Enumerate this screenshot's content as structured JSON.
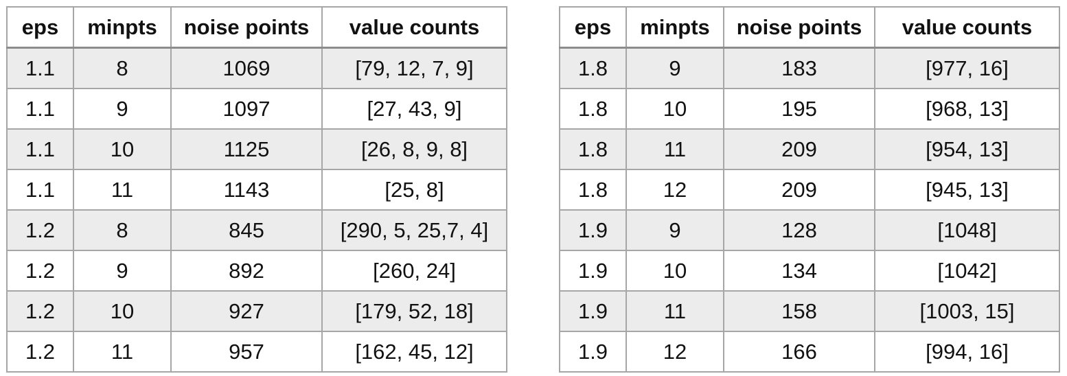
{
  "tables": [
    {
      "headers": [
        "eps",
        "minpts",
        "noise points",
        "value counts"
      ],
      "rows": [
        [
          "1.1",
          "8",
          "1069",
          "[79, 12, 7, 9]"
        ],
        [
          "1.1",
          "9",
          "1097",
          "[27, 43, 9]"
        ],
        [
          "1.1",
          "10",
          "1125",
          "[26, 8, 9, 8]"
        ],
        [
          "1.1",
          "11",
          "1143",
          "[25, 8]"
        ],
        [
          "1.2",
          "8",
          "845",
          "[290, 5, 25,7, 4]"
        ],
        [
          "1.2",
          "9",
          "892",
          "[260, 24]"
        ],
        [
          "1.2",
          "10",
          "927",
          "[179, 52, 18]"
        ],
        [
          "1.2",
          "11",
          "957",
          "[162, 45, 12]"
        ]
      ]
    },
    {
      "headers": [
        "eps",
        "minpts",
        "noise points",
        "value counts"
      ],
      "rows": [
        [
          "1.8",
          "9",
          "183",
          "[977, 16]"
        ],
        [
          "1.8",
          "10",
          "195",
          "[968, 13]"
        ],
        [
          "1.8",
          "11",
          "209",
          "[954, 13]"
        ],
        [
          "1.8",
          "12",
          "209",
          "[945, 13]"
        ],
        [
          "1.9",
          "9",
          "128",
          "[1048]"
        ],
        [
          "1.9",
          "10",
          "134",
          "[1042]"
        ],
        [
          "1.9",
          "11",
          "158",
          "[1003, 15]"
        ],
        [
          "1.9",
          "12",
          "166",
          "[994, 16]"
        ]
      ]
    }
  ]
}
